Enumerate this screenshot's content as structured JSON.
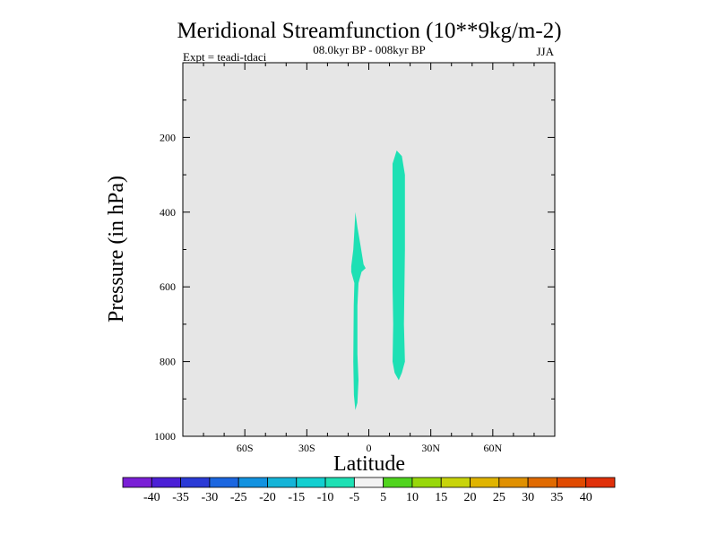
{
  "chart_data": {
    "type": "contour",
    "title": "Meridional Streamfunction (10**9kg/m-2)",
    "subtitle": "08.0kyr BP - 008kyr BP",
    "left_label": "Expt = teadi-tdaci",
    "right_label": "JJA",
    "xlabel": "Latitude",
    "ylabel": "Pressure (in hPa)",
    "xlim": [
      -90,
      90
    ],
    "ylim": [
      1000,
      0
    ],
    "x_ticks": [
      {
        "value": -60,
        "label": "60S"
      },
      {
        "value": -30,
        "label": "30S"
      },
      {
        "value": 0,
        "label": "0"
      },
      {
        "value": 30,
        "label": "30N"
      },
      {
        "value": 60,
        "label": "60N"
      }
    ],
    "y_ticks": [
      {
        "value": 200,
        "label": "200"
      },
      {
        "value": 400,
        "label": "400"
      },
      {
        "value": 600,
        "label": "600"
      },
      {
        "value": 800,
        "label": "800"
      },
      {
        "value": 1000,
        "label": "1000"
      }
    ],
    "background_color": "#e6e6e6",
    "shaded_regions": [
      {
        "name": "equatorial-thin-cell",
        "level": "-10 to -5",
        "color": "#1ee0b4",
        "points": [
          [
            -6.5,
            400
          ],
          [
            -5.5,
            440
          ],
          [
            -4,
            490
          ],
          [
            -2.5,
            540
          ],
          [
            -1.5,
            550
          ],
          [
            -3.5,
            560
          ],
          [
            -5,
            590
          ],
          [
            -5.5,
            650
          ],
          [
            -5.5,
            780
          ],
          [
            -5,
            850
          ],
          [
            -5.5,
            910
          ],
          [
            -6.5,
            930
          ],
          [
            -7.2,
            890
          ],
          [
            -7.5,
            800
          ],
          [
            -7.3,
            650
          ],
          [
            -7,
            590
          ],
          [
            -8.5,
            560
          ],
          [
            -8.5,
            545
          ],
          [
            -7.5,
            500
          ],
          [
            -7,
            450
          ]
        ]
      },
      {
        "name": "northern-cell",
        "level": "-10 to -5",
        "color": "#1ee0b4",
        "points": [
          [
            11.5,
            270
          ],
          [
            13.5,
            235
          ],
          [
            16,
            250
          ],
          [
            17.5,
            300
          ],
          [
            17.5,
            500
          ],
          [
            17,
            700
          ],
          [
            17.5,
            800
          ],
          [
            16,
            830
          ],
          [
            14.5,
            850
          ],
          [
            12.5,
            830
          ],
          [
            11.5,
            800
          ],
          [
            11.8,
            700
          ],
          [
            11.5,
            600
          ],
          [
            11.5,
            300
          ]
        ]
      }
    ],
    "colorbar": {
      "levels": [
        -40,
        -35,
        -30,
        -25,
        -20,
        -15,
        -10,
        -5,
        5,
        10,
        15,
        20,
        25,
        30,
        35,
        40
      ],
      "level_labels": [
        "-40",
        "-35",
        "-30",
        "-25",
        "-20",
        "-15",
        "-10",
        "-5",
        "5",
        "10",
        "15",
        "20",
        "25",
        "30",
        "35",
        "40"
      ],
      "colors": [
        "#7a1fd6",
        "#4b1fd6",
        "#2a3ad6",
        "#1b66e0",
        "#1292e0",
        "#14b4d8",
        "#12cfd0",
        "#1ee0b4",
        "#f2f2f2",
        "#50d41e",
        "#98d80a",
        "#c8d40a",
        "#e0b400",
        "#e09000",
        "#e06a00",
        "#e04a00",
        "#e0300a"
      ]
    }
  }
}
